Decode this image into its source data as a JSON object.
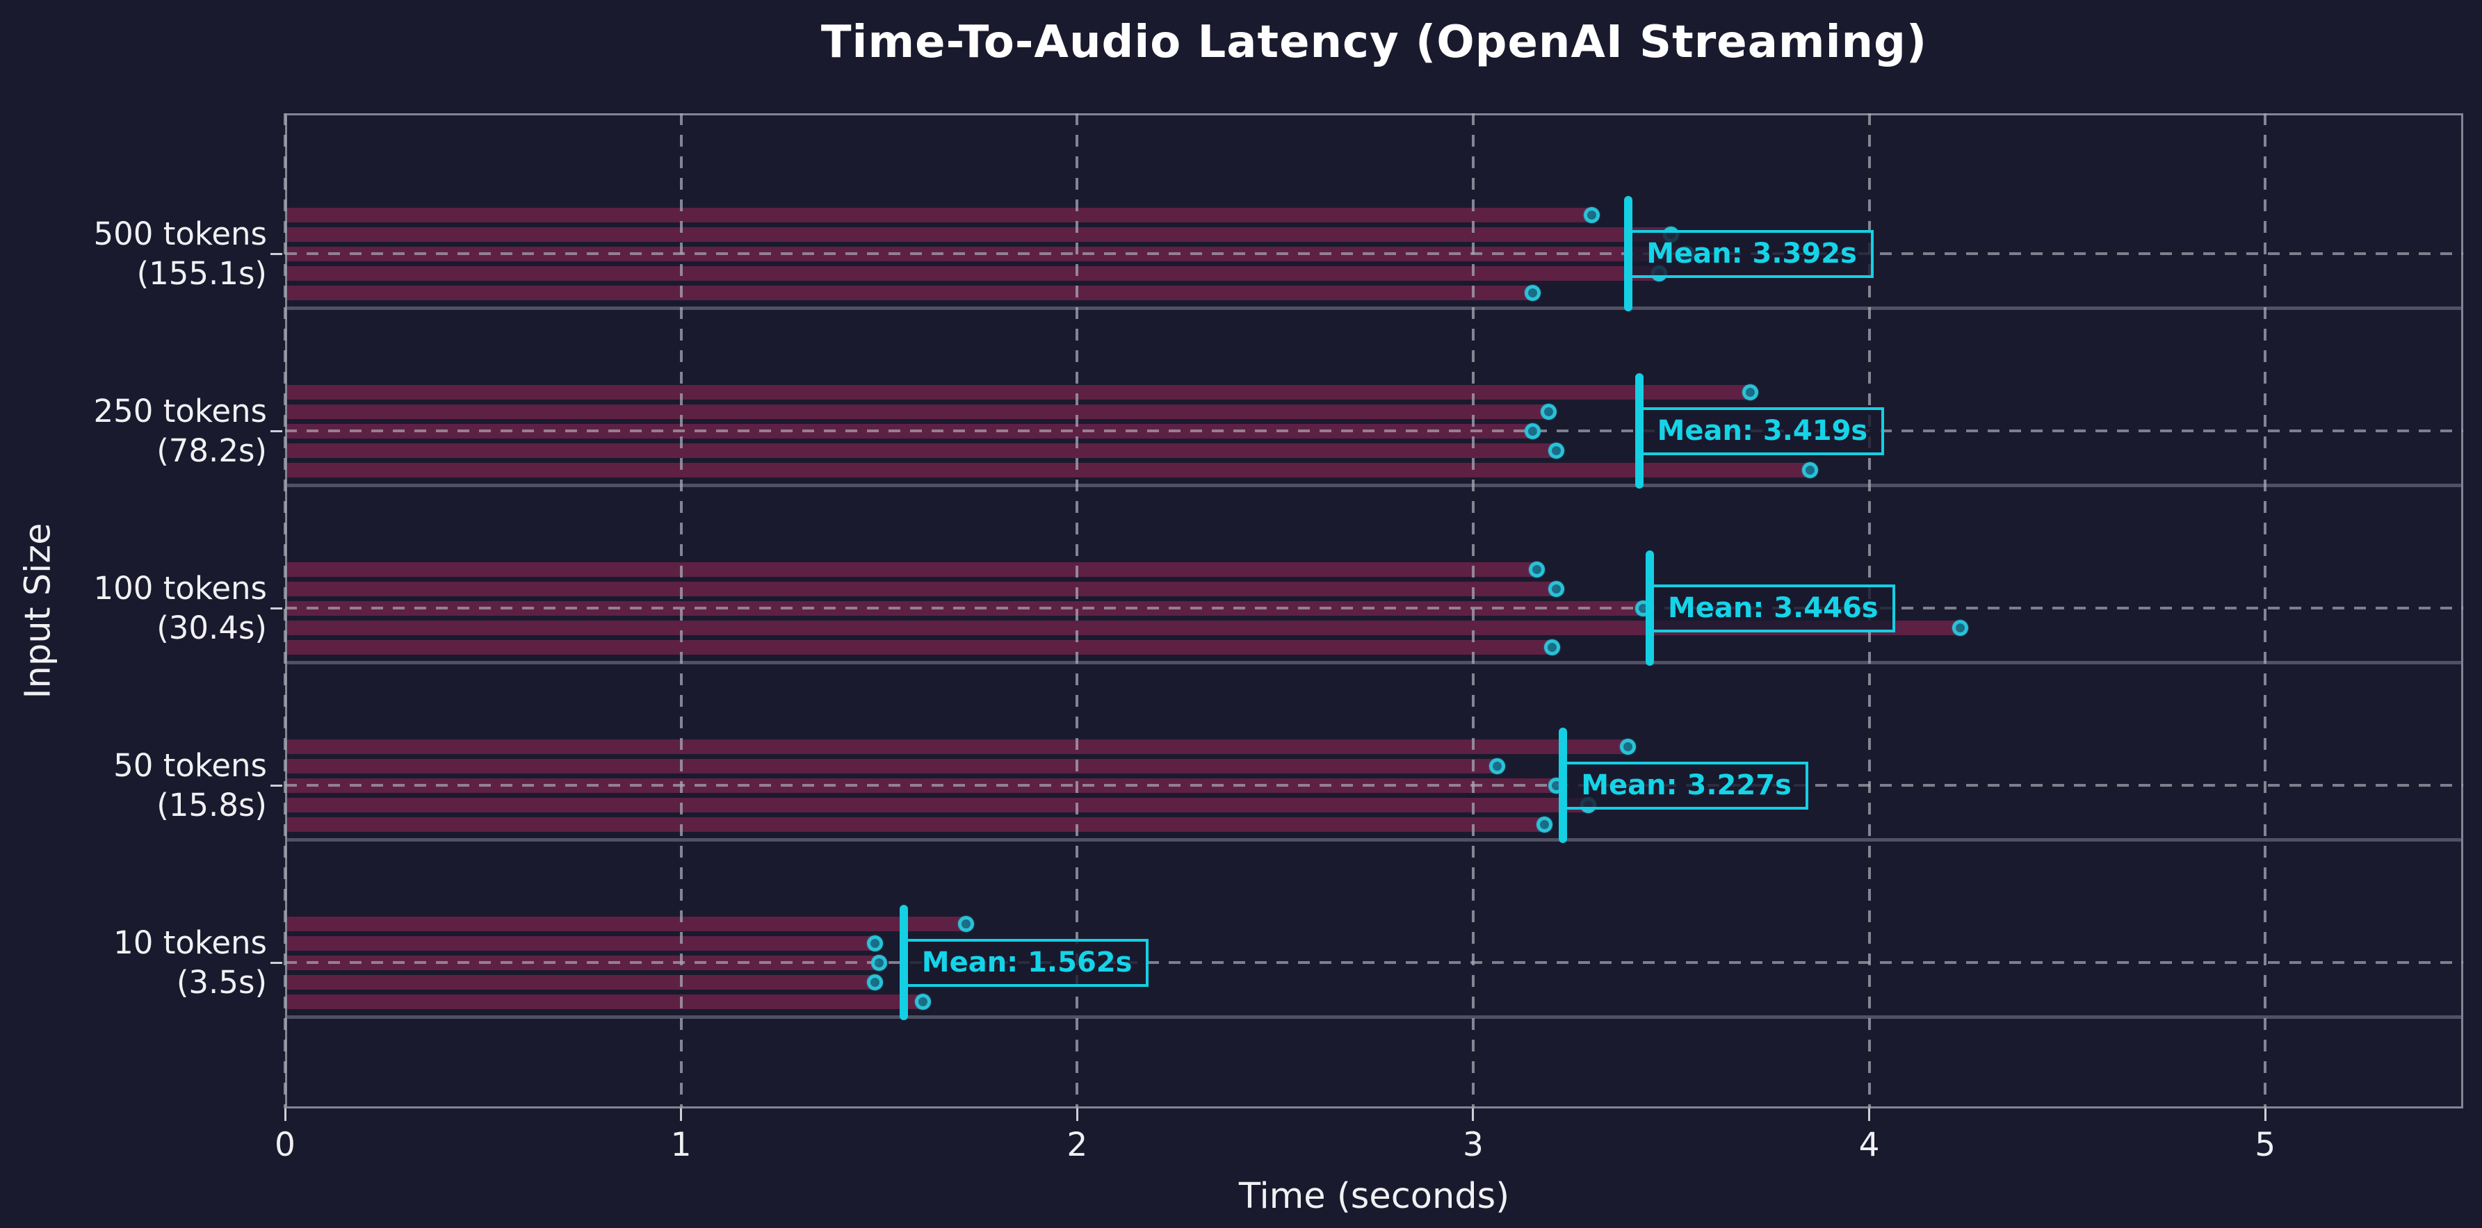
{
  "title": "Time-To-Audio Latency (OpenAI Streaming)",
  "colors": {
    "background": "#1a1a2e",
    "bar": "#5e2144",
    "accent_cyan": "#15cfe3",
    "dot_ring": "#2bc7db",
    "grid": "#a8a8b4",
    "separator": "#808094",
    "text": "#f1f1f4"
  },
  "chart_data": {
    "type": "bar",
    "orientation": "horizontal",
    "title": "Time-To-Audio Latency (OpenAI Streaming)",
    "xlabel": "Time (seconds)",
    "ylabel": "Input Size",
    "xlim": [
      0,
      5.5
    ],
    "xticks": [
      0,
      1,
      2,
      3,
      4,
      5
    ],
    "grid": "dashed",
    "legend": null,
    "groups": [
      {
        "label": "500 tokens",
        "sublabel": "(155.1s)",
        "mean": 3.392,
        "mean_label": "Mean: 3.392s",
        "runs": [
          3.3,
          3.5,
          3.54,
          3.47,
          3.15
        ]
      },
      {
        "label": "250 tokens",
        "sublabel": "(78.2s)",
        "mean": 3.419,
        "mean_label": "Mean: 3.419s",
        "runs": [
          3.7,
          3.19,
          3.15,
          3.21,
          3.85
        ]
      },
      {
        "label": "100 tokens",
        "sublabel": "(30.4s)",
        "mean": 3.446,
        "mean_label": "Mean: 3.446s",
        "runs": [
          3.16,
          3.21,
          3.43,
          4.23,
          3.2
        ]
      },
      {
        "label": "50 tokens",
        "sublabel": "(15.8s)",
        "mean": 3.227,
        "mean_label": "Mean: 3.227s",
        "runs": [
          3.39,
          3.06,
          3.21,
          3.29,
          3.18
        ]
      },
      {
        "label": "10 tokens",
        "sublabel": "(3.5s)",
        "mean": 1.562,
        "mean_label": "Mean: 1.562s",
        "runs": [
          1.72,
          1.49,
          1.5,
          1.49,
          1.61
        ]
      }
    ]
  }
}
